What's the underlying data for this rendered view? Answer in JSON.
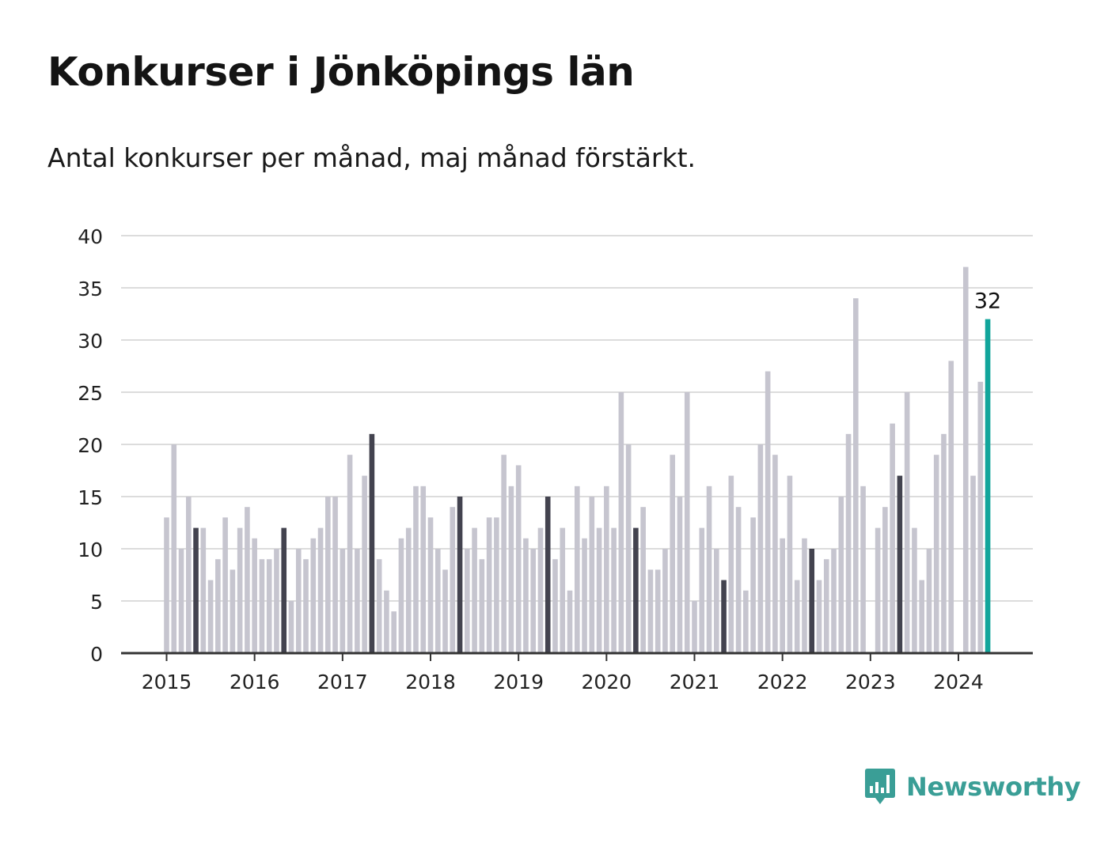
{
  "title": "Konkurser i Jönköpings län",
  "subtitle": "Antal konkurser per månad, maj månad förstärkt.",
  "logo": {
    "text": "Newsworthy",
    "icon": "bar-chart-speech-bubble-icon"
  },
  "colors": {
    "bar": "#c6c5cf",
    "highlight": "#43434f",
    "latest": "#11a59b",
    "grid": "#dcdcdc",
    "axis": "#333333",
    "text": "#222222",
    "brand": "#3a9e96"
  },
  "chart_data": {
    "type": "bar",
    "title": "Konkurser i Jönköpings län",
    "subtitle": "Antal konkurser per månad, maj månad förstärkt.",
    "xlabel": "",
    "ylabel": "",
    "ylim": [
      0,
      40
    ],
    "yticks": [
      0,
      5,
      10,
      15,
      20,
      25,
      30,
      35,
      40
    ],
    "xticks": [
      "2015",
      "2016",
      "2017",
      "2018",
      "2019",
      "2020",
      "2021",
      "2022",
      "2023",
      "2024"
    ],
    "grid": true,
    "start_month": "2015-01",
    "highlight_month": "maj",
    "values": [
      13,
      20,
      10,
      15,
      12,
      12,
      7,
      9,
      13,
      8,
      12,
      14,
      11,
      9,
      9,
      10,
      12,
      5,
      10,
      9,
      11,
      12,
      15,
      15,
      10,
      19,
      10,
      17,
      21,
      9,
      6,
      4,
      11,
      12,
      16,
      16,
      13,
      10,
      8,
      14,
      15,
      10,
      12,
      9,
      13,
      13,
      19,
      16,
      18,
      11,
      10,
      12,
      15,
      9,
      12,
      6,
      16,
      11,
      15,
      12,
      16,
      12,
      25,
      20,
      12,
      14,
      8,
      8,
      10,
      19,
      15,
      25,
      5,
      12,
      16,
      10,
      7,
      17,
      14,
      6,
      13,
      20,
      27,
      19,
      11,
      17,
      7,
      11,
      10,
      7,
      9,
      10,
      15,
      21,
      34,
      16,
      0,
      12,
      14,
      22,
      17,
      25,
      12,
      7,
      10,
      19,
      21,
      28,
      0,
      37,
      17,
      26,
      32
    ],
    "latest_label": "32"
  }
}
